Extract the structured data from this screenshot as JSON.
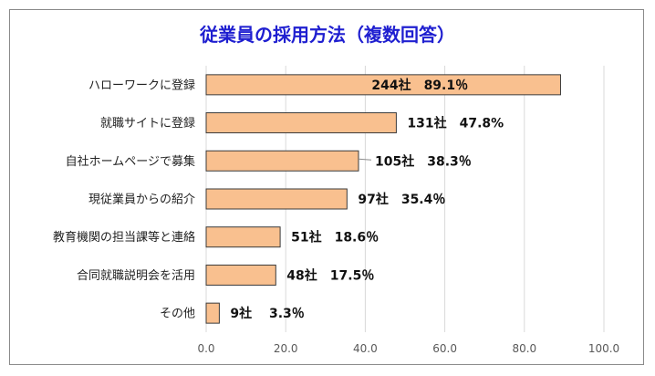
{
  "chart_data": {
    "type": "bar",
    "orientation": "horizontal",
    "title": "従業員の採用方法（複数回答）",
    "xlabel": "",
    "ylabel": "",
    "xlim": [
      0,
      100
    ],
    "x_ticks": [
      "0.0",
      "20.0",
      "40.0",
      "60.0",
      "80.0",
      "100.0"
    ],
    "grid": true,
    "legend": "none",
    "categories": [
      "ハローワークに登録",
      "就職サイトに登録",
      "自社ホームページで募集",
      "現従業員からの紹介",
      "教育機関の担当課等と連絡",
      "合同就職説明会を活用",
      "その他"
    ],
    "values": [
      89.1,
      47.8,
      38.3,
      35.4,
      18.6,
      17.5,
      3.3
    ],
    "data_labels": [
      "244社　89.1％",
      "131社　47.8%",
      "105社　38.3％",
      "97社　35.4％",
      "51社　18.6％",
      "48社　17.5％",
      "9社　 3.3％"
    ],
    "colors": {
      "bar_fill": "#f9c08f",
      "bar_stroke": "#3b3b3b",
      "title": "#1f1fd0",
      "grid": "#d9d9d9"
    }
  }
}
